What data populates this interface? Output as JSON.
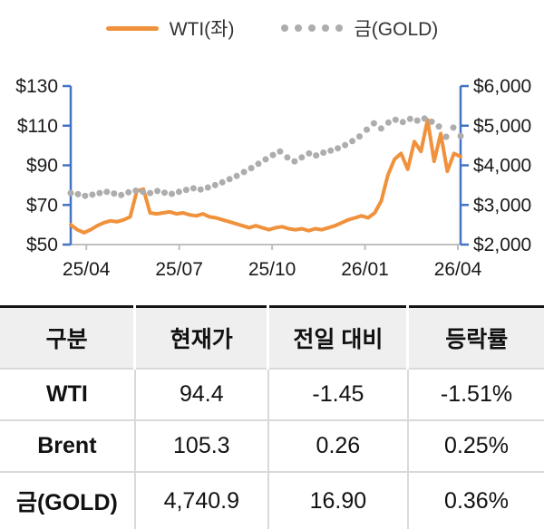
{
  "chart_data": {
    "type": "line",
    "title": "",
    "legend_position": "top",
    "axis_color": "#4472C4",
    "baseline_color": "#BFBFBF",
    "label_color": "#1a1a1a",
    "x_ticks": [
      "25/04",
      "25/07",
      "25/10",
      "26/01",
      "26/04"
    ],
    "y_left": {
      "min": 50,
      "max": 130,
      "ticks": [
        "$130",
        "$110",
        "$90",
        "$70",
        "$50"
      ]
    },
    "y_right": {
      "min": 2000,
      "max": 6000,
      "ticks": [
        "$6,000",
        "$5,000",
        "$4,000",
        "$3,000",
        "$2,000"
      ]
    },
    "series": [
      {
        "name": "WTI(좌)",
        "axis": "left",
        "style": "line",
        "color": "#F0913C",
        "values": [
          60.0,
          57.5,
          56.0,
          57.5,
          59.5,
          61.0,
          62.0,
          61.5,
          62.5,
          64.0,
          77.0,
          78.0,
          66.0,
          65.5,
          66.0,
          66.5,
          65.5,
          66.0,
          65.0,
          64.5,
          65.5,
          64.0,
          63.5,
          62.5,
          61.5,
          60.5,
          59.5,
          58.5,
          59.5,
          58.5,
          57.5,
          58.5,
          59.0,
          58.0,
          57.5,
          58.0,
          57.0,
          58.0,
          57.5,
          58.5,
          59.5,
          61.0,
          62.5,
          63.5,
          64.5,
          63.5,
          66.0,
          72.0,
          85.0,
          93.0,
          96.0,
          88.0,
          102.0,
          97.0,
          113.0,
          92.0,
          106.0,
          87.0,
          96.0,
          94.4
        ]
      },
      {
        "name": "금(GOLD)",
        "axis": "right",
        "style": "dots",
        "color": "#ADADAD",
        "values": [
          3300,
          3270,
          3230,
          3260,
          3300,
          3330,
          3290,
          3250,
          3320,
          3360,
          3330,
          3300,
          3350,
          3310,
          3280,
          3330,
          3380,
          3420,
          3390,
          3440,
          3500,
          3570,
          3650,
          3730,
          3830,
          3930,
          4040,
          4150,
          4260,
          4350,
          4200,
          4100,
          4200,
          4300,
          4250,
          4320,
          4370,
          4430,
          4510,
          4610,
          4730,
          4900,
          5060,
          4930,
          5080,
          5150,
          5090,
          5170,
          5130,
          5180,
          5100,
          4980,
          4720,
          4950,
          4740
        ]
      }
    ]
  },
  "table": {
    "headers": [
      "구분",
      "현재가",
      "전일 대비",
      "등락률"
    ],
    "rows": [
      {
        "name": "WTI",
        "price": "94.4",
        "change": "-1.45",
        "pct": "-1.51%"
      },
      {
        "name": "Brent",
        "price": "105.3",
        "change": "0.26",
        "pct": "0.25%"
      },
      {
        "name": "금(GOLD)",
        "price": "4,740.9",
        "change": "16.90",
        "pct": "0.36%"
      }
    ]
  }
}
